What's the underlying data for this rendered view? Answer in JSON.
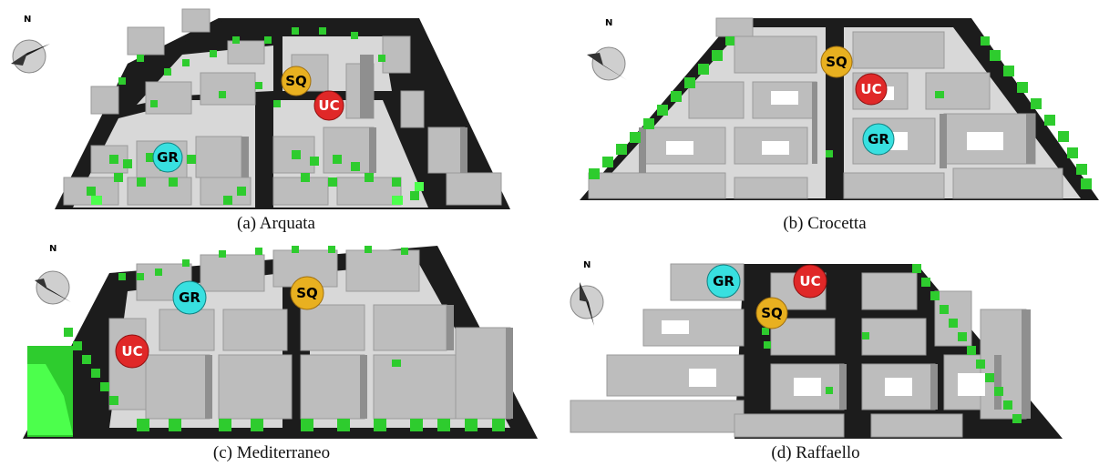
{
  "figure": {
    "panels": [
      {
        "id": "a",
        "caption": "(a) Arquata",
        "compass_label": "N",
        "markers": [
          {
            "label": "SQ",
            "color": "#e8b020"
          },
          {
            "label": "UC",
            "color": "#e02828"
          },
          {
            "label": "GR",
            "color": "#38e0e0"
          }
        ]
      },
      {
        "id": "b",
        "caption": "(b) Crocetta",
        "compass_label": "N",
        "markers": [
          {
            "label": "SQ",
            "color": "#e8b020"
          },
          {
            "label": "UC",
            "color": "#e02828"
          },
          {
            "label": "GR",
            "color": "#38e0e0"
          }
        ]
      },
      {
        "id": "c",
        "caption": "(c) Mediterraneo",
        "compass_label": "N",
        "markers": [
          {
            "label": "GR",
            "color": "#38e0e0"
          },
          {
            "label": "SQ",
            "color": "#e8b020"
          },
          {
            "label": "UC",
            "color": "#e02828"
          }
        ]
      },
      {
        "id": "d",
        "caption": "(d) Raffaello",
        "compass_label": "N",
        "markers": [
          {
            "label": "GR",
            "color": "#38e0e0"
          },
          {
            "label": "UC",
            "color": "#e02828"
          },
          {
            "label": "SQ",
            "color": "#e8b020"
          }
        ]
      }
    ],
    "colors": {
      "road": "#1c1c1c",
      "building": "#bdbdbd",
      "building_shade": "#8f8f8f",
      "vegetation": "#2ecc2e",
      "vegetation_bright": "#4cff4c"
    }
  }
}
